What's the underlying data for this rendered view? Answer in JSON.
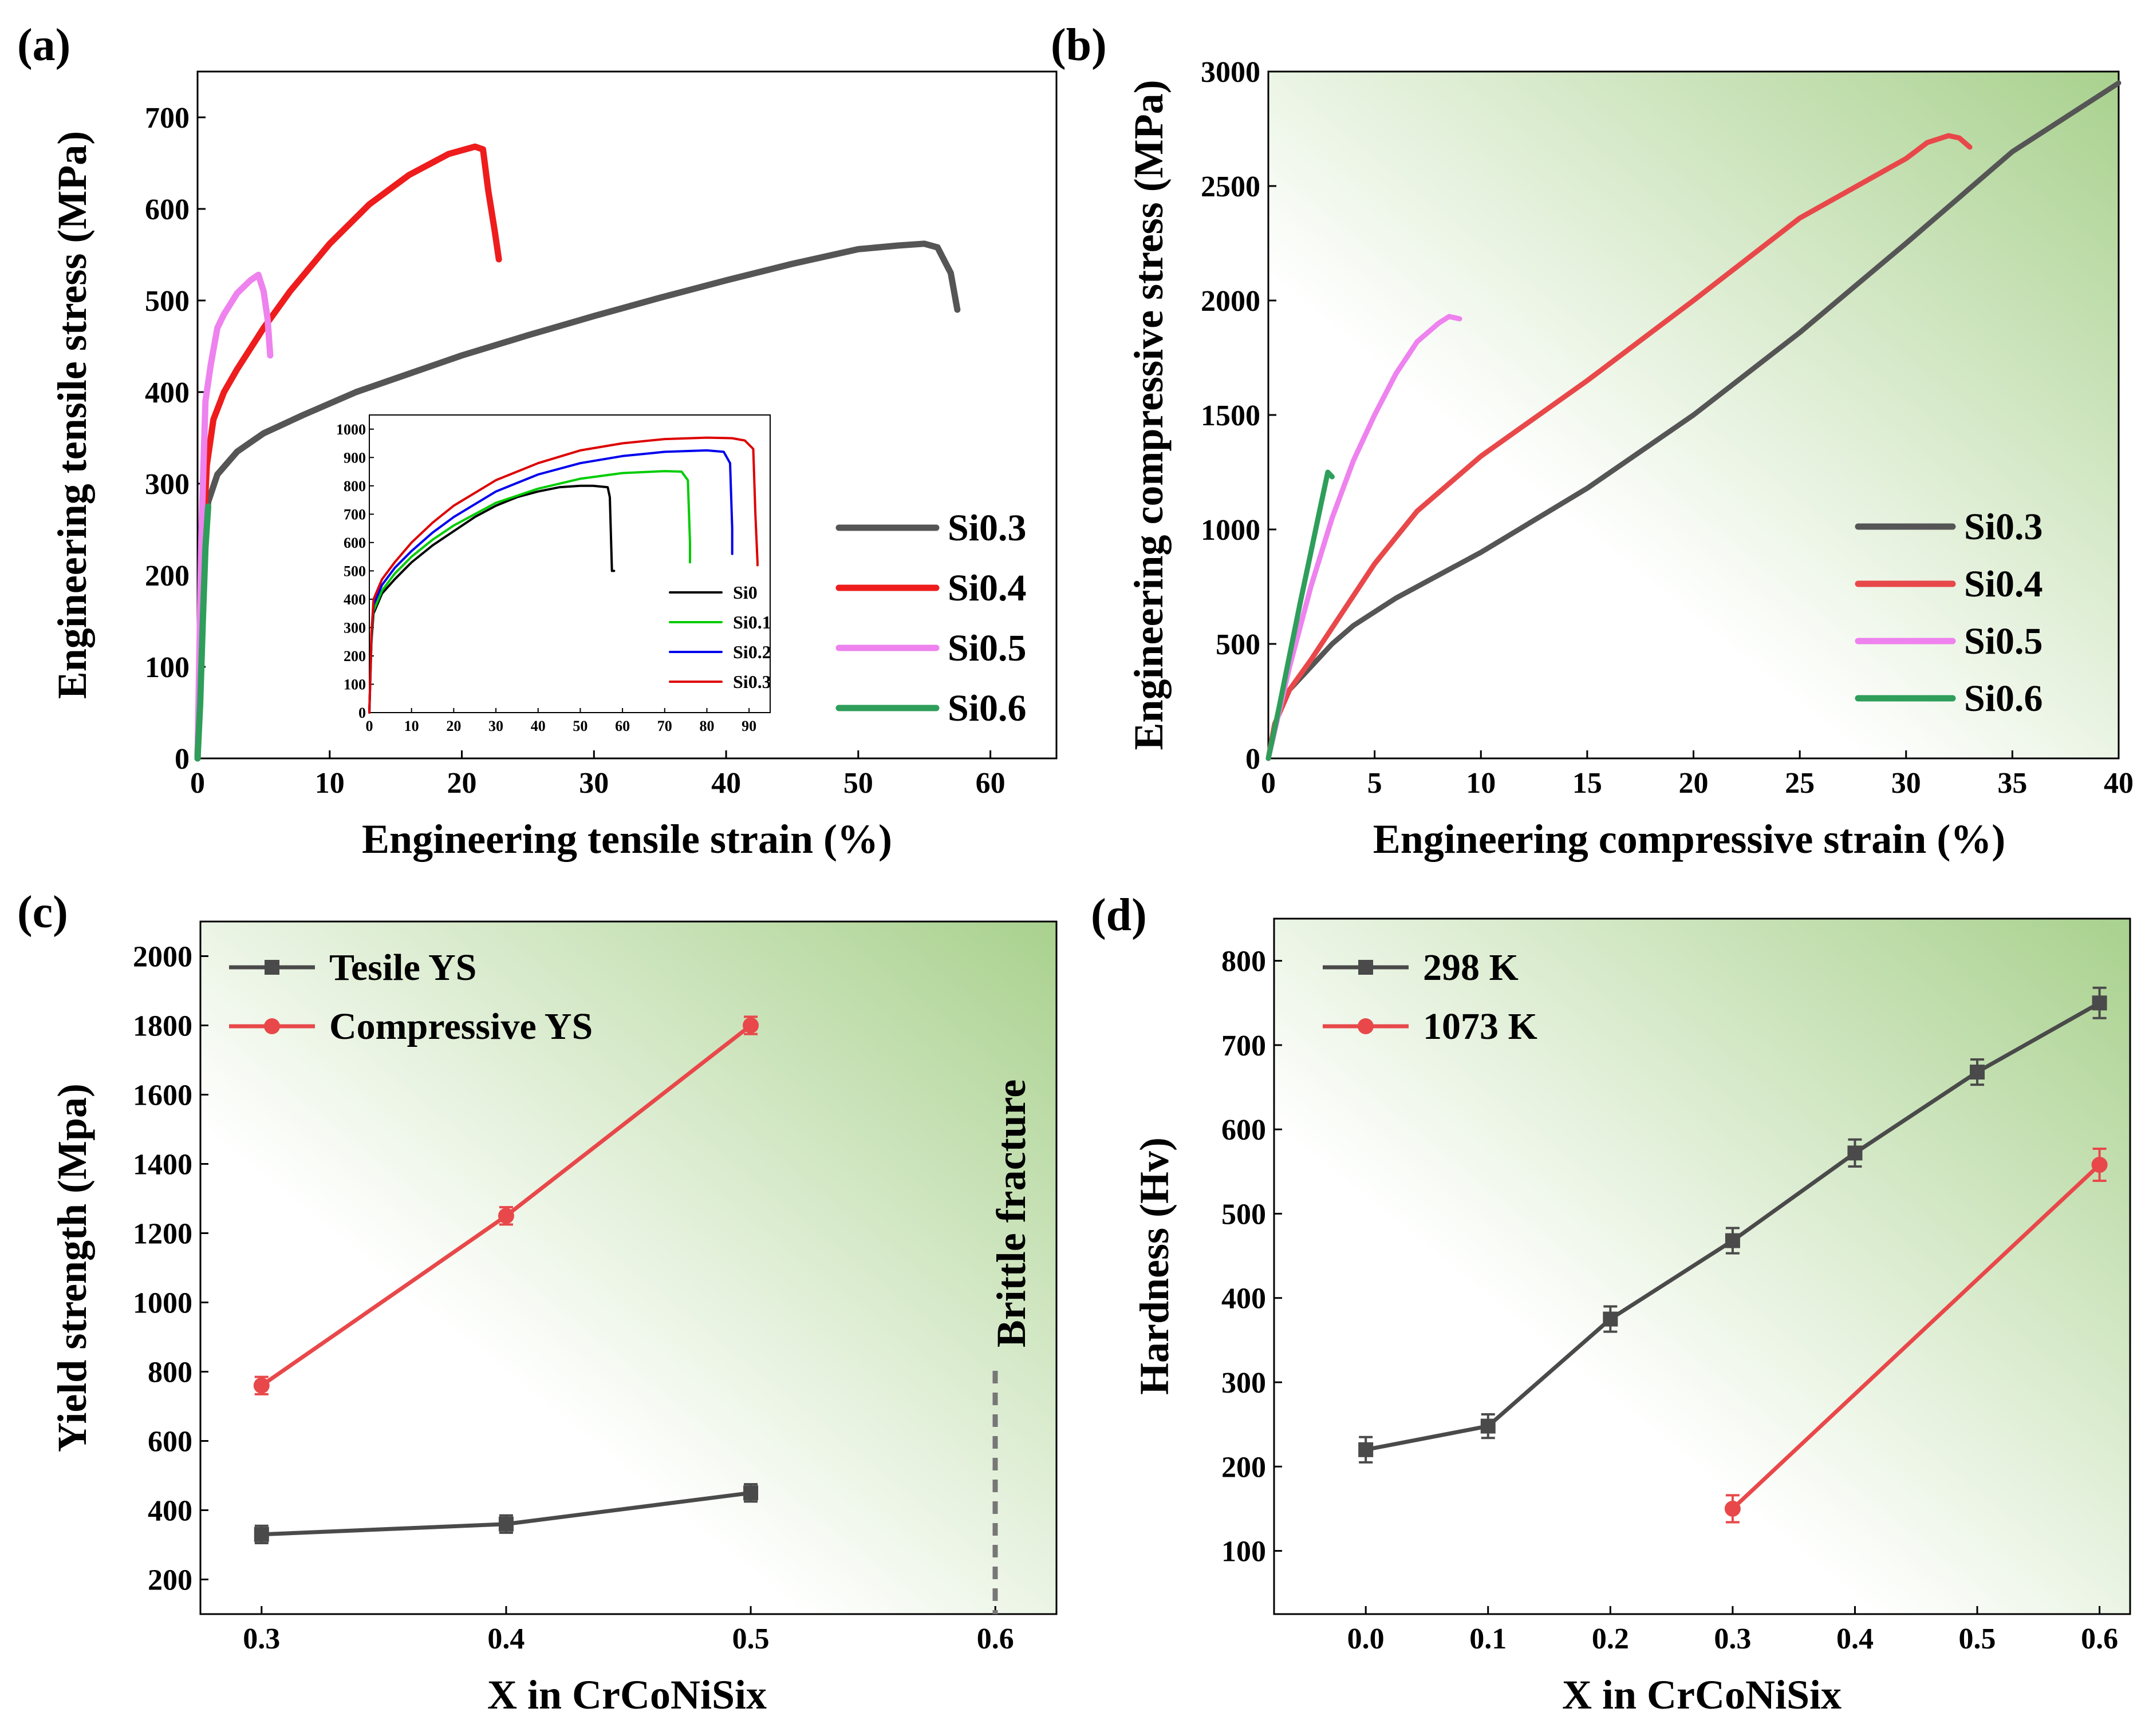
{
  "panels": [
    {
      "id": "a",
      "label": "(a)"
    },
    {
      "id": "b",
      "label": "(b)"
    },
    {
      "id": "c",
      "label": "(c)"
    },
    {
      "id": "d",
      "label": "(d)"
    }
  ],
  "chart_data": [
    {
      "panel": "(a)",
      "type": "line",
      "xlabel": "Engineering tensile strain (%)",
      "ylabel": "Engineering tensile stress (MPa)",
      "xlim": [
        0,
        65
      ],
      "ylim": [
        0,
        750
      ],
      "xticks": [
        0,
        10,
        20,
        30,
        40,
        50,
        60
      ],
      "yticks": [
        0,
        100,
        200,
        300,
        400,
        500,
        600,
        700
      ],
      "legend_position": "right",
      "series": [
        {
          "name": "Si0.3",
          "color": "#555555",
          "x": [
            0,
            0.4,
            0.8,
            1.5,
            3,
            5,
            8,
            12,
            16,
            20,
            25,
            30,
            35,
            40,
            45,
            50,
            53,
            55,
            56,
            57,
            57.5
          ],
          "y": [
            0,
            200,
            280,
            310,
            335,
            355,
            375,
            400,
            420,
            440,
            462,
            483,
            503,
            522,
            540,
            556,
            560,
            562,
            558,
            530,
            490
          ]
        },
        {
          "name": "Si0.4",
          "color": "#ee1c1c",
          "x": [
            0,
            0.3,
            0.7,
            1.2,
            2,
            3,
            5,
            7,
            10,
            13,
            16,
            19,
            21,
            21.6,
            22,
            22.5,
            22.8
          ],
          "y": [
            0,
            200,
            320,
            370,
            400,
            425,
            470,
            510,
            562,
            605,
            637,
            660,
            668,
            665,
            620,
            575,
            545
          ]
        },
        {
          "name": "Si0.5",
          "color": "#ee82ee",
          "x": [
            0,
            0.3,
            0.6,
            1,
            1.5,
            2,
            3,
            4,
            4.6,
            5,
            5.3,
            5.5
          ],
          "y": [
            0,
            250,
            390,
            430,
            470,
            485,
            508,
            522,
            528,
            510,
            480,
            440
          ]
        },
        {
          "name": "Si0.6",
          "color": "#2e9e5a",
          "x": [
            0,
            0.2,
            0.4,
            0.6,
            0.8
          ],
          "y": [
            0,
            60,
            150,
            230,
            275
          ]
        }
      ],
      "inset": {
        "xlim": [
          0,
          95
        ],
        "ylim": [
          0,
          1050
        ],
        "xticks": [
          0,
          10,
          20,
          30,
          40,
          50,
          60,
          70,
          80,
          90
        ],
        "yticks": [
          0,
          100,
          200,
          300,
          400,
          500,
          600,
          700,
          800,
          900,
          1000
        ],
        "series": [
          {
            "name": "Si0",
            "color": "#000000",
            "x": [
              0,
              0.5,
              1,
              3,
              6,
              10,
              15,
              20,
              25,
              30,
              35,
              40,
              45,
              50,
              53,
              56.5,
              57,
              57.5,
              58
            ],
            "y": [
              0,
              250,
              350,
              420,
              470,
              530,
              590,
              640,
              690,
              730,
              760,
              780,
              795,
              800,
              800,
              795,
              760,
              500,
              500
            ]
          },
          {
            "name": "Si0.1",
            "color": "#00cc00",
            "x": [
              0,
              0.5,
              1,
              3,
              6,
              10,
              15,
              20,
              30,
              40,
              50,
              60,
              70,
              74,
              75.5,
              76,
              76
            ],
            "y": [
              0,
              260,
              360,
              430,
              490,
              550,
              610,
              660,
              740,
              790,
              825,
              845,
              852,
              850,
              820,
              600,
              530
            ]
          },
          {
            "name": "Si0.2",
            "color": "#0000ee",
            "x": [
              0,
              0.5,
              1,
              3,
              6,
              10,
              15,
              20,
              30,
              40,
              50,
              60,
              70,
              80,
              84,
              85.5,
              86,
              86
            ],
            "y": [
              0,
              270,
              380,
              450,
              510,
              570,
              635,
              690,
              780,
              840,
              880,
              905,
              920,
              925,
              920,
              880,
              650,
              560
            ]
          },
          {
            "name": "Si0.3",
            "color": "#dd0000",
            "x": [
              0,
              0.5,
              1,
              3,
              6,
              10,
              15,
              20,
              30,
              40,
              50,
              60,
              70,
              80,
              86,
              89,
              91,
              91.5,
              92,
              92
            ],
            "y": [
              0,
              280,
              400,
              470,
              530,
              600,
              670,
              730,
              820,
              880,
              925,
              950,
              965,
              970,
              968,
              960,
              930,
              700,
              530,
              520
            ]
          }
        ]
      }
    },
    {
      "panel": "(b)",
      "type": "line",
      "xlabel": "Engineering compressive strain (%)",
      "ylabel": "Engineering compressive stress (MPa)",
      "xlim": [
        0,
        40
      ],
      "ylim": [
        0,
        3000
      ],
      "xticks": [
        0,
        5,
        10,
        15,
        20,
        25,
        30,
        35,
        40
      ],
      "yticks": [
        0,
        500,
        1000,
        1500,
        2000,
        2500,
        3000
      ],
      "legend_position": "right",
      "series": [
        {
          "name": "Si0.3",
          "color": "#555555",
          "x": [
            0,
            0.3,
            1,
            2,
            3,
            4,
            6,
            8,
            10,
            15,
            20,
            25,
            30,
            35,
            40
          ],
          "y": [
            0,
            150,
            300,
            400,
            500,
            580,
            700,
            800,
            900,
            1180,
            1500,
            1860,
            2250,
            2650,
            2950
          ]
        },
        {
          "name": "Si0.4",
          "color": "#e8484a",
          "x": [
            0,
            0.3,
            1,
            2,
            3,
            5,
            7,
            10,
            15,
            20,
            25,
            30,
            31,
            32,
            32.5,
            33
          ],
          "y": [
            0,
            150,
            300,
            430,
            570,
            850,
            1080,
            1320,
            1650,
            2000,
            2360,
            2620,
            2690,
            2720,
            2710,
            2670
          ]
        },
        {
          "name": "Si0.5",
          "color": "#ee82ee",
          "x": [
            0,
            0.5,
            1,
            2,
            3,
            4,
            5,
            6,
            7,
            8,
            8.5,
            9
          ],
          "y": [
            0,
            200,
            400,
            750,
            1050,
            1300,
            1500,
            1680,
            1820,
            1900,
            1930,
            1920
          ]
        },
        {
          "name": "Si0.6",
          "color": "#2e9e5a",
          "x": [
            0,
            0.5,
            1,
            1.5,
            2,
            2.5,
            2.8,
            3.0
          ],
          "y": [
            0,
            220,
            450,
            680,
            900,
            1120,
            1250,
            1230
          ]
        }
      ]
    },
    {
      "panel": "(c)",
      "type": "line",
      "xlabel": "X in CrCoNiSix",
      "ylabel": "Yield strength (Mpa)",
      "xlim": [
        0.275,
        0.625
      ],
      "ylim": [
        100,
        2100
      ],
      "xticks": [
        0.3,
        0.4,
        0.5,
        0.6
      ],
      "yticks": [
        200,
        400,
        600,
        800,
        1000,
        1200,
        1400,
        1600,
        1800,
        2000
      ],
      "legend_position": "top-left",
      "annotation": "Brittle fracture",
      "series": [
        {
          "name": "Tesile YS",
          "color": "#4a4a4a",
          "marker": "square",
          "x": [
            0.3,
            0.4,
            0.5
          ],
          "y": [
            330,
            360,
            450
          ],
          "err": [
            25,
            25,
            25
          ]
        },
        {
          "name": "Compressive YS",
          "color": "#e8484a",
          "marker": "circle",
          "x": [
            0.3,
            0.4,
            0.5
          ],
          "y": [
            760,
            1250,
            1800
          ],
          "err": [
            25,
            25,
            25
          ]
        }
      ]
    },
    {
      "panel": "(d)",
      "type": "line",
      "xlabel": "X in CrCoNiSix",
      "ylabel": "Hardness (Hv)",
      "xlim": [
        -0.075,
        0.625
      ],
      "ylim": [
        25,
        850
      ],
      "xticks": [
        0.0,
        0.1,
        0.2,
        0.3,
        0.4,
        0.5,
        0.6
      ],
      "yticks": [
        100,
        200,
        300,
        400,
        500,
        600,
        700,
        800
      ],
      "legend_position": "top-left",
      "series": [
        {
          "name": "298 K",
          "color": "#4a4a4a",
          "marker": "square",
          "x": [
            0.0,
            0.1,
            0.2,
            0.3,
            0.4,
            0.5,
            0.6
          ],
          "y": [
            220,
            248,
            375,
            468,
            572,
            668,
            750
          ],
          "err": [
            15,
            14,
            15,
            15,
            16,
            15,
            18
          ]
        },
        {
          "name": "1073 K",
          "color": "#e8484a",
          "marker": "circle",
          "x": [
            0.3,
            0.6
          ],
          "y": [
            150,
            558
          ],
          "err": [
            16,
            19
          ]
        }
      ]
    }
  ]
}
